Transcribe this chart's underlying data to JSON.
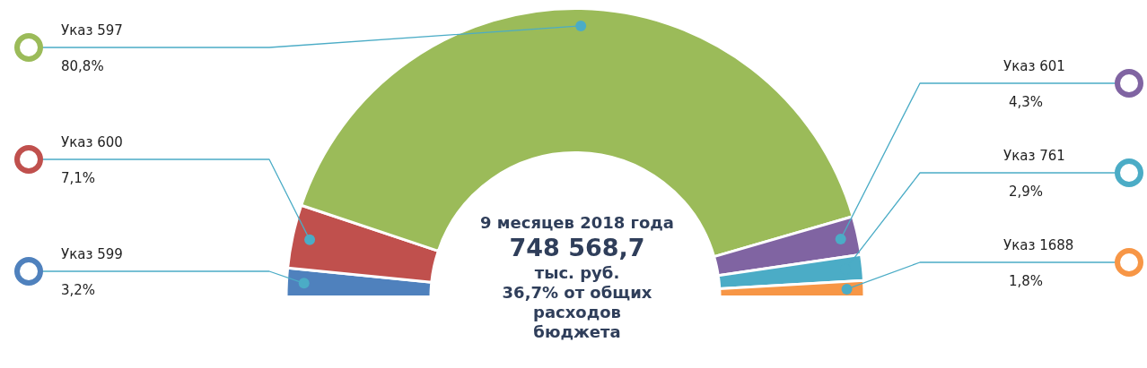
{
  "chart_data": {
    "type": "donut",
    "title": "9 месяцев 2018 года",
    "annotations": [
      "748 568,7",
      "тыс. руб.",
      "36,7% от общих расходов бюджета"
    ],
    "categories": [
      "Указ 599",
      "Указ 600",
      "Указ 597",
      "Указ 601",
      "Указ 761",
      "Указ 1688"
    ],
    "values": [
      3.2,
      7.1,
      80.8,
      4.3,
      2.9,
      1.8
    ],
    "value_labels": [
      "3,2%",
      "7,1%",
      "80,8%",
      "4,3%",
      "2,9%",
      "1,8%"
    ],
    "colors": [
      "#4f81bd",
      "#c0504d",
      "#9bbb59",
      "#8064a2",
      "#4bacc6",
      "#f79646"
    ],
    "legend": false
  }
}
